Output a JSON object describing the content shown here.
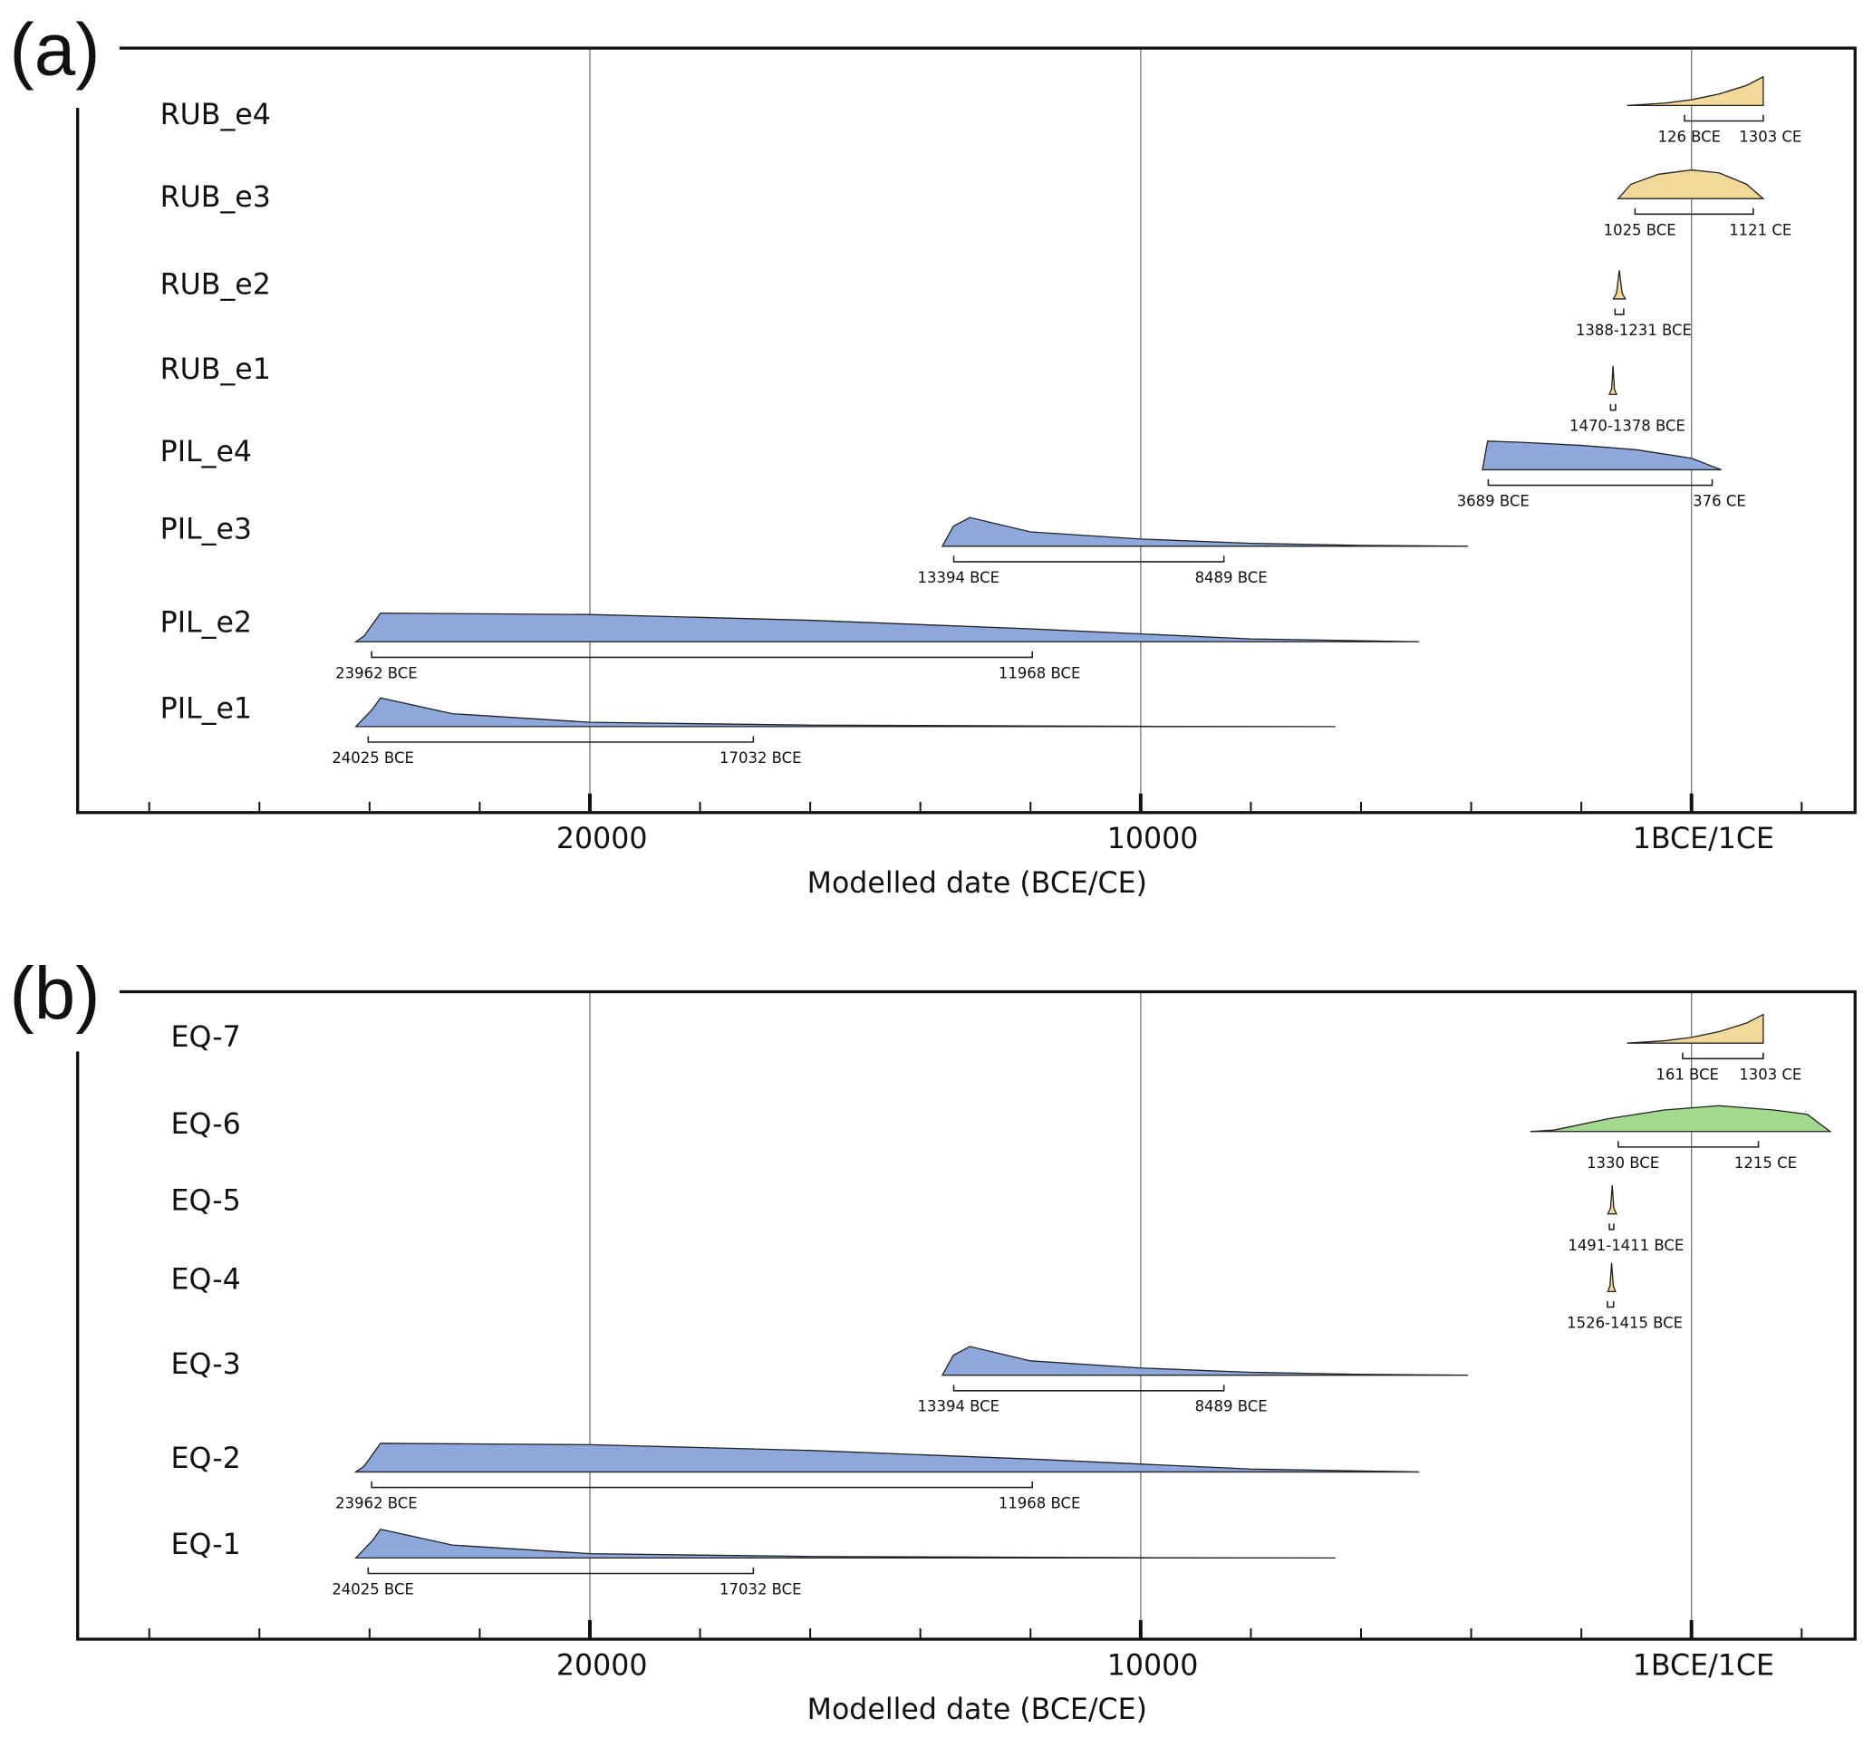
{
  "chart_data": [
    {
      "type": "density",
      "panel_label": "(a)",
      "xlabel": "Modelled date (BCE/CE)",
      "xlim": [
        -29300,
        2970
      ],
      "xticks": [
        {
          "value": -20000,
          "label": "20000"
        },
        {
          "value": -10000,
          "label": "10000"
        },
        {
          "value": 0,
          "label": "1BCE/1CE"
        }
      ],
      "minor_xticks": [
        -28000,
        -26000,
        -24000,
        -22000,
        -18000,
        -16000,
        -14000,
        -12000,
        -8000,
        -6000,
        -4000,
        -2000,
        2000
      ],
      "grid": true,
      "series": [
        {
          "name": "RUB_e4",
          "color": "#f2d999",
          "x": [
            -1171,
            -500,
            0,
            500,
            1000,
            1302,
            1302
          ],
          "values": [
            0,
            0.08,
            0.2,
            0.4,
            0.7,
            1,
            0
          ],
          "interval": [
            -126,
            1303
          ],
          "interval_labels": [
            "126 BCE",
            "1303 CE"
          ]
        },
        {
          "name": "RUB_e3",
          "color": "#f2d999",
          "x": [
            -1330,
            -1100,
            -600,
            0,
            500,
            1000,
            1302
          ],
          "values": [
            0,
            0.5,
            0.85,
            1,
            0.9,
            0.5,
            0
          ],
          "interval": [
            -1025,
            1121
          ],
          "interval_labels": [
            "1025 BCE",
            "1121 CE"
          ]
        },
        {
          "name": "RUB_e2",
          "color": "#f2d999",
          "x": [
            -1420,
            -1360,
            -1310,
            -1260,
            -1200
          ],
          "values": [
            0,
            0.2,
            1,
            0.2,
            0
          ],
          "interval": [
            -1388,
            -1231
          ],
          "interval_label": "1388-1231 BCE"
        },
        {
          "name": "RUB_e1",
          "color": "#f2d999",
          "x": [
            -1490,
            -1450,
            -1424,
            -1400,
            -1360
          ],
          "values": [
            0,
            0.2,
            1,
            0.2,
            0
          ],
          "interval": [
            -1470,
            -1378
          ],
          "interval_label": "1470-1378 BCE"
        },
        {
          "name": "PIL_e4",
          "color": "#8fa8dc",
          "x": [
            -3796,
            -3700,
            -3000,
            -2000,
            -1000,
            0,
            542
          ],
          "values": [
            0,
            1,
            0.95,
            0.85,
            0.7,
            0.4,
            0
          ],
          "interval": [
            -3689,
            376
          ],
          "interval_labels": [
            "3689 BCE",
            "376 CE"
          ]
        },
        {
          "name": "PIL_e3",
          "color": "#8fa8dc",
          "x": [
            -13600,
            -13400,
            -13100,
            -12000,
            -10000,
            -8000,
            -6000,
            -4056
          ],
          "values": [
            0,
            0.7,
            1,
            0.5,
            0.25,
            0.1,
            0.03,
            0
          ],
          "interval": [
            -13394,
            -8489
          ],
          "interval_labels": [
            "13394 BCE",
            "8489 BCE"
          ]
        },
        {
          "name": "PIL_e2",
          "color": "#8fa8dc",
          "x": [
            -24250,
            -24100,
            -23800,
            -20000,
            -16000,
            -12000,
            -8000,
            -4946
          ],
          "values": [
            0,
            0.2,
            1,
            0.95,
            0.75,
            0.45,
            0.1,
            0
          ],
          "interval": [
            -23962,
            -11968
          ],
          "interval_labels": [
            "23962 BCE",
            "11968 BCE"
          ]
        },
        {
          "name": "PIL_e1",
          "color": "#8fa8dc",
          "x": [
            -24250,
            -23950,
            -23800,
            -22500,
            -20000,
            -16000,
            -10000,
            -6464
          ],
          "values": [
            0,
            0.6,
            1,
            0.45,
            0.15,
            0.05,
            0.01,
            0
          ],
          "interval": [
            -24025,
            -17032
          ],
          "interval_labels": [
            "24025 BCE",
            "17032 BCE"
          ]
        }
      ]
    },
    {
      "type": "density",
      "panel_label": "(b)",
      "xlabel": "Modelled date (BCE/CE)",
      "xlim": [
        -29300,
        2970
      ],
      "xticks": [
        {
          "value": -20000,
          "label": "20000"
        },
        {
          "value": -10000,
          "label": "10000"
        },
        {
          "value": 0,
          "label": "1BCE/1CE"
        }
      ],
      "minor_xticks": [
        -28000,
        -26000,
        -24000,
        -22000,
        -18000,
        -16000,
        -14000,
        -12000,
        -8000,
        -6000,
        -4000,
        -2000,
        2000
      ],
      "grid": true,
      "series": [
        {
          "name": "EQ-7",
          "color": "#f2d999",
          "x": [
            -1171,
            -500,
            0,
            500,
            1000,
            1302,
            1302
          ],
          "values": [
            0,
            0.08,
            0.2,
            0.4,
            0.7,
            1,
            0
          ],
          "interval": [
            -161,
            1303
          ],
          "interval_labels": [
            "161 BCE",
            "1303 CE"
          ]
        },
        {
          "name": "EQ-6",
          "color": "#a3d88f",
          "name_color": "#2e8b2e",
          "x": [
            -2928,
            -2500,
            -1500,
            -500,
            500,
            1500,
            2100,
            2516
          ],
          "values": [
            0,
            0.05,
            0.45,
            0.75,
            0.9,
            0.75,
            0.6,
            0
          ],
          "interval": [
            -1330,
            1215
          ],
          "interval_labels": [
            "1330 BCE",
            "1215 CE"
          ]
        },
        {
          "name": "EQ-5",
          "color": "#f2d999",
          "x": [
            -1520,
            -1470,
            -1440,
            -1410,
            -1360
          ],
          "values": [
            0,
            0.2,
            1,
            0.2,
            0
          ],
          "interval": [
            -1491,
            -1411
          ],
          "interval_label": "1491-1411 BCE"
        },
        {
          "name": "EQ-4",
          "color": "#f2d999",
          "x": [
            -1520,
            -1480,
            -1450,
            -1420,
            -1380
          ],
          "values": [
            0,
            0.2,
            1,
            0.2,
            0
          ],
          "interval": [
            -1526,
            -1415
          ],
          "interval_label": "1526-1415 BCE"
        },
        {
          "name": "EQ-3",
          "color": "#8fa8dc",
          "x": [
            -13600,
            -13400,
            -13100,
            -12000,
            -10000,
            -8000,
            -6000,
            -4056
          ],
          "values": [
            0,
            0.7,
            1,
            0.5,
            0.25,
            0.1,
            0.03,
            0
          ],
          "interval": [
            -13394,
            -8489
          ],
          "interval_labels": [
            "13394 BCE",
            "8489 BCE"
          ]
        },
        {
          "name": "EQ-2",
          "color": "#8fa8dc",
          "x": [
            -24250,
            -24100,
            -23800,
            -20000,
            -16000,
            -12000,
            -8000,
            -4946
          ],
          "values": [
            0,
            0.2,
            1,
            0.95,
            0.75,
            0.45,
            0.1,
            0
          ],
          "interval": [
            -23962,
            -11968
          ],
          "interval_labels": [
            "23962 BCE",
            "11968 BCE"
          ]
        },
        {
          "name": "EQ-1",
          "color": "#8fa8dc",
          "x": [
            -24250,
            -23950,
            -23800,
            -22500,
            -20000,
            -16000,
            -10000,
            -6464
          ],
          "values": [
            0,
            0.6,
            1,
            0.45,
            0.15,
            0.05,
            0.01,
            0
          ],
          "interval": [
            -24025,
            -17032
          ],
          "interval_labels": [
            "24025 BCE",
            "17032 BCE"
          ]
        }
      ]
    }
  ]
}
